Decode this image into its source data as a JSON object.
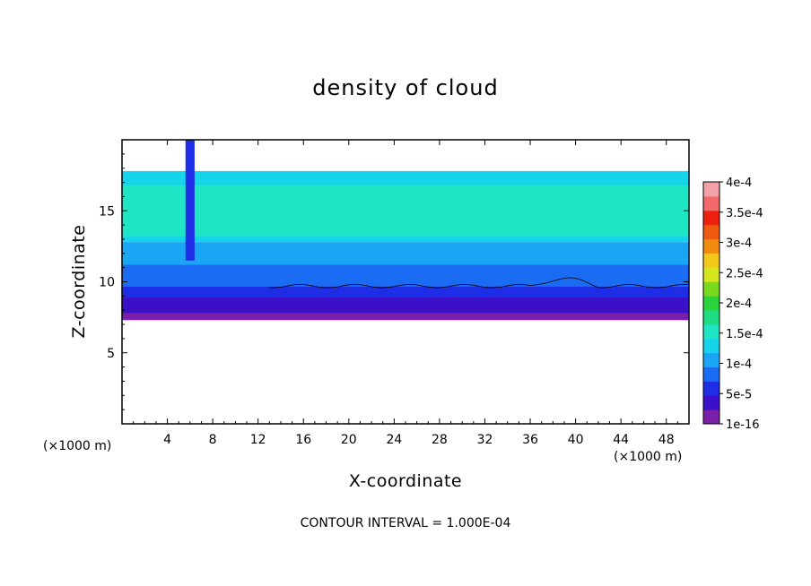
{
  "chart_data": {
    "type": "heatmap",
    "title": "density of cloud",
    "xlabel": "X-coordinate",
    "ylabel": "Z-coordinate",
    "x_unit_label": "(×1000 m)",
    "xlim": [
      0,
      50
    ],
    "ylim": [
      0,
      20
    ],
    "x_ticks": [
      4,
      8,
      12,
      16,
      20,
      24,
      28,
      32,
      36,
      40,
      44,
      48
    ],
    "y_ticks": [
      5,
      10,
      15
    ],
    "footer": "CONTOUR INTERVAL = 1.000E-04",
    "colorbar": {
      "labels": [
        "1e-16",
        "5e-5",
        "1e-4",
        "1.5e-4",
        "2e-4",
        "2.5e-4",
        "3e-4",
        "3.5e-4",
        "4e-4"
      ],
      "levels": [
        {
          "value": 1e-16,
          "color": "#7a1fa8"
        },
        {
          "value": 2.5e-05,
          "color": "#3a10c8"
        },
        {
          "value": 5e-05,
          "color": "#1e2ee6"
        },
        {
          "value": 7.5e-05,
          "color": "#1a6cf2"
        },
        {
          "value": 0.0001,
          "color": "#1aa6f4"
        },
        {
          "value": 0.000125,
          "color": "#16d4ea"
        },
        {
          "value": 0.00015,
          "color": "#1ee6c4"
        },
        {
          "value": 0.000175,
          "color": "#1edc82"
        },
        {
          "value": 0.0002,
          "color": "#2ad23c"
        },
        {
          "value": 0.000225,
          "color": "#7ad81e"
        },
        {
          "value": 0.00025,
          "color": "#d4e61e"
        },
        {
          "value": 0.000275,
          "color": "#f2c81a"
        },
        {
          "value": 0.0003,
          "color": "#f28c10"
        },
        {
          "value": 0.000325,
          "color": "#ee5a10"
        },
        {
          "value": 0.00035,
          "color": "#ee2010"
        },
        {
          "value": 0.000375,
          "color": "#f26a6a"
        },
        {
          "value": 0.0004,
          "color": "#f4a0a8"
        }
      ]
    },
    "bands": [
      {
        "level": 1e-16,
        "z_bottom": 7.3,
        "z_top": 9.5,
        "color": "#7a1fa8"
      },
      {
        "level": 2.5e-05,
        "z_bottom": 7.8,
        "z_top": 8.9,
        "color": "#3a10c8"
      },
      {
        "level": 5e-05,
        "z_bottom": 8.9,
        "z_top": 9.7,
        "color": "#1e2ee6"
      },
      {
        "level": 7.5e-05,
        "z_bottom": 9.7,
        "z_top": 11.2,
        "color": "#1a6cf2"
      },
      {
        "level": 0.0001,
        "z_bottom": 11.2,
        "z_top": 12.8,
        "color": "#1aa6f4"
      },
      {
        "level": 0.000125,
        "z_bottom": 12.8,
        "z_top": 17.8,
        "color": "#16d4ea"
      },
      {
        "level": 0.00015,
        "z_bottom": 13.2,
        "z_top": 16.8,
        "color": "#1ee6c4"
      }
    ]
  }
}
